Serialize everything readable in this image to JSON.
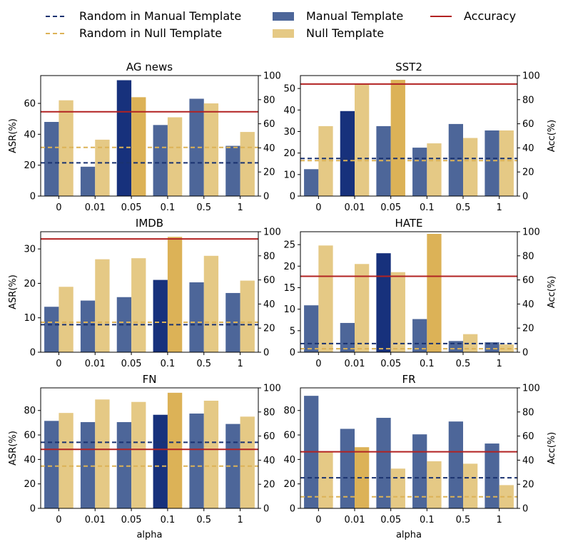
{
  "legend": [
    {
      "label": "Random in Manual Template",
      "kind": "dashed",
      "color": "#1a3270"
    },
    {
      "label": "Random in Null Template",
      "kind": "dashed",
      "color": "#dcb257"
    },
    {
      "label": "Manual Template",
      "kind": "patch",
      "color": "#4d6699"
    },
    {
      "label": "Null Template",
      "kind": "patch",
      "color": "#e5c985"
    },
    {
      "label": "Accuracy",
      "kind": "line",
      "color": "#b22222"
    }
  ],
  "colors": {
    "manual_light": "#4d6699",
    "manual_dark": "#17317c",
    "null_light": "#e5c985",
    "null_dark": "#dcb257",
    "acc": "#b22222",
    "rand_manual": "#1a3270",
    "rand_null": "#dcb257"
  },
  "chart_data": [
    {
      "type": "bar",
      "title": "AG news",
      "categories": [
        "0",
        "0.01",
        "0.05",
        "0.1",
        "0.5",
        "1"
      ],
      "series": [
        {
          "name": "Manual Template",
          "values": [
            48,
            19,
            75,
            46,
            63,
            32.5
          ]
        },
        {
          "name": "Null Template",
          "values": [
            62,
            36.5,
            64,
            51,
            60,
            41.5
          ]
        }
      ],
      "highlight": {
        "manual": 2,
        "null": 2
      },
      "random_manual": 21.5,
      "random_null": 31.5,
      "accuracy": 70,
      "ylim": [
        0,
        78
      ],
      "yticks": [
        0,
        20,
        40,
        60
      ],
      "y2lim": [
        0,
        100
      ],
      "y2ticks": [
        0,
        20,
        40,
        60,
        80,
        100
      ],
      "ylabel": "ASR(%)",
      "y2label": "",
      "xlabel": ""
    },
    {
      "type": "bar",
      "title": "SST2",
      "categories": [
        "0",
        "0.01",
        "0.05",
        "0.1",
        "0.5",
        "1"
      ],
      "series": [
        {
          "name": "Manual Template",
          "values": [
            12.5,
            39.5,
            32.5,
            22.5,
            33.5,
            30.5
          ]
        },
        {
          "name": "Null Template",
          "values": [
            32.5,
            52,
            54,
            24.5,
            27,
            30.5
          ]
        }
      ],
      "highlight": {
        "manual": 1,
        "null": 2
      },
      "random_manual": 17.5,
      "random_null": 16.5,
      "accuracy": 93,
      "ylim": [
        0,
        56
      ],
      "yticks": [
        0,
        10,
        20,
        30,
        40,
        50
      ],
      "y2lim": [
        0,
        100
      ],
      "y2ticks": [
        0,
        20,
        40,
        60,
        80,
        100
      ],
      "ylabel": "",
      "y2label": "Acc(%)",
      "xlabel": ""
    },
    {
      "type": "bar",
      "title": "IMDB",
      "categories": [
        "0",
        "0.01",
        "0.05",
        "0.1",
        "0.5",
        "1"
      ],
      "series": [
        {
          "name": "Manual Template",
          "values": [
            13.2,
            15,
            16,
            21,
            20.3,
            17.2
          ]
        },
        {
          "name": "Null Template",
          "values": [
            19,
            27,
            27.3,
            33.5,
            28,
            20.8
          ]
        }
      ],
      "highlight": {
        "manual": 3,
        "null": 3
      },
      "random_manual": 8,
      "random_null": 8.7,
      "accuracy": 94,
      "ylim": [
        0,
        35
      ],
      "yticks": [
        0,
        10,
        20,
        30
      ],
      "y2lim": [
        0,
        100
      ],
      "y2ticks": [
        0,
        20,
        40,
        60,
        80,
        100
      ],
      "ylabel": "ASR(%)",
      "y2label": "",
      "xlabel": ""
    },
    {
      "type": "bar",
      "title": "HATE",
      "categories": [
        "0",
        "0.01",
        "0.05",
        "0.1",
        "0.5",
        "1"
      ],
      "series": [
        {
          "name": "Manual Template",
          "values": [
            10.9,
            6.8,
            23,
            7.7,
            2.6,
            2.3
          ]
        },
        {
          "name": "Null Template",
          "values": [
            24.8,
            20.5,
            18.6,
            27.5,
            4.2,
            1.8
          ]
        }
      ],
      "highlight": {
        "manual": 2,
        "null": 3
      },
      "random_manual": 2,
      "random_null": 0.8,
      "accuracy": 63,
      "ylim": [
        0,
        28
      ],
      "yticks": [
        0,
        5,
        10,
        15,
        20,
        25
      ],
      "y2lim": [
        0,
        100
      ],
      "y2ticks": [
        0,
        20,
        40,
        60,
        80,
        100
      ],
      "ylabel": "",
      "y2label": "Acc(%)",
      "xlabel": ""
    },
    {
      "type": "bar",
      "title": "FN",
      "categories": [
        "0",
        "0.01",
        "0.05",
        "0.1",
        "0.5",
        "1"
      ],
      "series": [
        {
          "name": "Manual Template",
          "values": [
            71.5,
            70.5,
            70.5,
            76.5,
            77.5,
            69
          ]
        },
        {
          "name": "Null Template",
          "values": [
            78,
            89,
            87,
            94.5,
            88,
            75
          ]
        }
      ],
      "highlight": {
        "manual": 3,
        "null": 3
      },
      "random_manual": 54,
      "random_null": 34.5,
      "accuracy": 49,
      "ylim": [
        0,
        98.5
      ],
      "yticks": [
        0,
        20,
        40,
        60,
        80
      ],
      "y2lim": [
        0,
        100
      ],
      "y2ticks": [
        0,
        20,
        40,
        60,
        80,
        100
      ],
      "ylabel": "ASR(%)",
      "y2label": "",
      "xlabel": "alpha"
    },
    {
      "type": "bar",
      "title": "FR",
      "categories": [
        "0",
        "0.01",
        "0.05",
        "0.1",
        "0.5",
        "1"
      ],
      "series": [
        {
          "name": "Manual Template",
          "values": [
            92,
            65,
            74,
            60.5,
            71,
            53
          ]
        },
        {
          "name": "Null Template",
          "values": [
            46.5,
            50,
            32.5,
            38.5,
            36.5,
            19
          ]
        }
      ],
      "highlight": {
        "manual": -1,
        "null": 1
      },
      "random_manual": 25,
      "random_null": 9.5,
      "accuracy": 47,
      "ylim": [
        0,
        98.5
      ],
      "yticks": [
        0,
        20,
        40,
        60,
        80
      ],
      "y2lim": [
        0,
        100
      ],
      "y2ticks": [
        0,
        20,
        40,
        60,
        80,
        100
      ],
      "ylabel": "",
      "y2label": "Acc(%)",
      "xlabel": "alpha"
    }
  ]
}
